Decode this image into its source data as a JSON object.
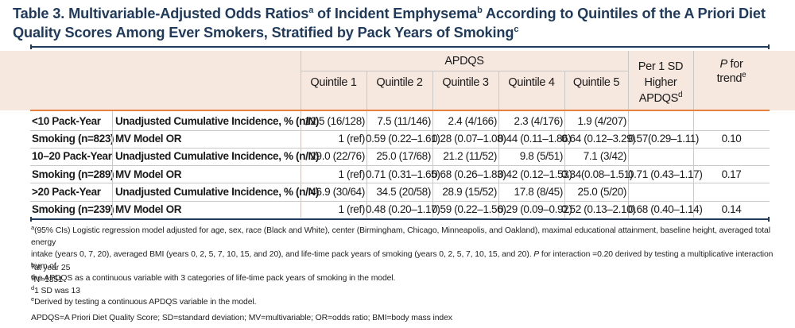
{
  "title": {
    "part1": "Table 3. Multivariable-Adjusted Odds Ratios",
    "sup1": "a",
    "part2": " of Incident Emphysema",
    "sup2": "b",
    "part3": " According to Quintiles of the A Priori Diet Quality Scores Among Ever Smokers, Stratified by Pack Years of Smoking",
    "sup3": "c"
  },
  "header": {
    "group": "APDQS",
    "quintiles": [
      "Quintile 1",
      "Quintile 2",
      "Quintile 3",
      "Quintile 4",
      "Quintile 5"
    ],
    "per_sd_line1": "Per 1 SD",
    "per_sd_line2": "Higher",
    "per_sd_line3": "APDQS",
    "per_sd_sup": "d",
    "ptrend_p": "P",
    "ptrend_for": " for",
    "ptrend_line2": "trend",
    "ptrend_sup": "e"
  },
  "rows": [
    {
      "group": "<10 Pack-Year",
      "label": "Unadjusted Cumulative Incidence, % (n/N)",
      "q": [
        "12.5 (16/128)",
        "7.5 (11/146)",
        "2.4 (4/166)",
        "2.3 (4/176)",
        "1.9 (4/207)"
      ],
      "per_sd": "",
      "ptrend": ""
    },
    {
      "group": "Smoking (n=823)",
      "label": "MV Model OR",
      "q": [
        "1 (ref)",
        "0.59 (0.22–1.61)",
        "0.28 (0.07–1.08)",
        "0.44 (0.11–1.86)",
        "0.64 (0.12–3.29)"
      ],
      "per_sd": "0.57(0.29–1.11)",
      "ptrend": "0.10"
    },
    {
      "group": "10–20 Pack-Year",
      "label": "Unadjusted Cumulative Incidence, % (n/N)",
      "q": [
        "29.0 (22/76)",
        "25.0 (17/68)",
        "21.2 (11/52)",
        "9.8 (5/51)",
        "7.1 (3/42)"
      ],
      "per_sd": "",
      "ptrend": ""
    },
    {
      "group": "Smoking (n=289)",
      "label": "MV Model OR",
      "q": [
        "1 (ref)",
        "0.71 (0.31–1.65)",
        "0.68 (0.26–1.83)",
        "0.42 (0.12–1.53)",
        "0.34(0.08–1.51)"
      ],
      "per_sd": "0.71 (0.43–1.17)",
      "ptrend": "0.17"
    },
    {
      "group": ">20 Pack-Year",
      "label": "Unadjusted Cumulative Incidence, % (n/N)",
      "q": [
        "46.9 (30/64)",
        "34.5 (20/58)",
        "28.9 (15/52)",
        "17.8 (8/45)",
        "25.0 (5/20)"
      ],
      "per_sd": "",
      "ptrend": ""
    },
    {
      "group": "Smoking (n=239)",
      "label": "MV Model OR",
      "q": [
        "1 (ref)",
        "0.48 (0.20–1.17)",
        "0.59 (0.22–1.56)",
        "0.29 (0.09–0.92)",
        "0.52 (0.13–2.10)"
      ],
      "per_sd": "0.68 (0.40–1.14)",
      "ptrend": "0.14"
    }
  ],
  "footnotes": {
    "a_sup": "a",
    "a_text1": "(95% CIs) Logistic regression model adjusted for age, sex, race (Black and White), center (Birmingham, Chicago, Minneapolis, and Oakland), maximal educational attainment, baseline height, averaged total energy",
    "a_text2": "intake (years 0, 7, 20), averaged BMI (years 0, 2, 5, 7, 10, 15, and 20), and life-time pack years of smoking (years 0, 2, 5, 7, 10, 15, and 20). ",
    "a_text2_p": "P",
    "a_text2_rest": " for interaction =0.20 derived by testing a multiplicative interaction term of",
    "a_text3": "the APDQS as a continuous variable with 3 categories of life-time pack years of smoking in the model.",
    "b_sup": "b",
    "b_text": "at year 25",
    "c_sup": "c",
    "c_text": "N=1351",
    "d_sup": "d",
    "d_text": "1 SD was 13",
    "e_sup": "e",
    "e_text": "Derived by testing a continuous APDQS variable in the model.",
    "abbrev": "APDQS=A Priori Diet Quality Score; SD=standard deviation; MV=multivariable; OR=odds ratio; BMI=body mass index"
  }
}
